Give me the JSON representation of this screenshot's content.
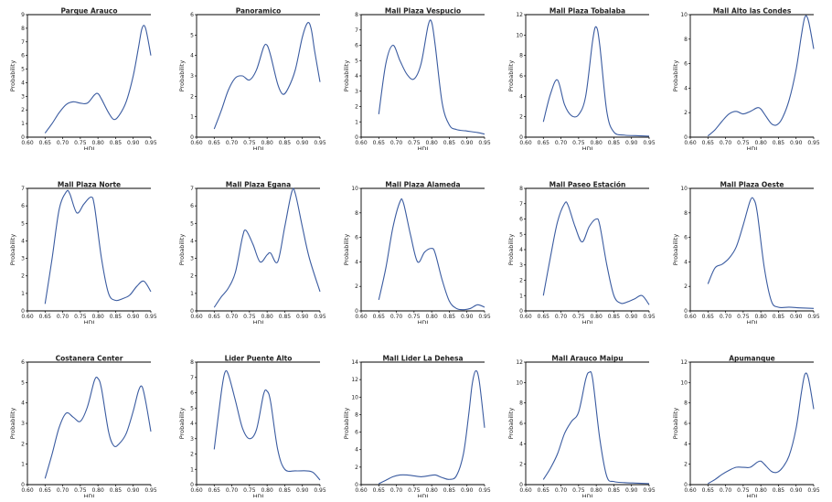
{
  "line_color": "#3a5ba0",
  "chart_data": [
    {
      "type": "line",
      "title": "Parque Arauco",
      "xlabel": "HDI",
      "ylabel": "Probability",
      "xlim": [
        0.6,
        0.95
      ],
      "ylim": [
        0,
        9
      ],
      "xticks": [
        0.6,
        0.65,
        0.7,
        0.75,
        0.8,
        0.85,
        0.9,
        0.95
      ],
      "yticks": [
        0,
        1,
        2,
        3,
        4,
        5,
        6,
        7,
        8,
        9
      ],
      "x": [
        0.65,
        0.67,
        0.69,
        0.71,
        0.73,
        0.75,
        0.77,
        0.79,
        0.8,
        0.81,
        0.83,
        0.845,
        0.86,
        0.88,
        0.9,
        0.915,
        0.925,
        0.935,
        0.95
      ],
      "y": [
        0.3,
        1.0,
        1.8,
        2.4,
        2.6,
        2.5,
        2.5,
        3.1,
        3.2,
        2.8,
        1.8,
        1.3,
        1.6,
        2.6,
        4.5,
        6.6,
        8.0,
        8.0,
        6.0
      ]
    },
    {
      "type": "line",
      "title": "Panoramico",
      "xlabel": "HDI",
      "ylabel": "Probability",
      "xlim": [
        0.6,
        0.95
      ],
      "ylim": [
        0,
        6
      ],
      "xticks": [
        0.6,
        0.65,
        0.7,
        0.75,
        0.8,
        0.85,
        0.9,
        0.95
      ],
      "yticks": [
        0,
        1,
        2,
        3,
        4,
        5,
        6
      ],
      "x": [
        0.65,
        0.67,
        0.69,
        0.71,
        0.73,
        0.75,
        0.77,
        0.79,
        0.8,
        0.81,
        0.83,
        0.845,
        0.86,
        0.88,
        0.9,
        0.915,
        0.925,
        0.935,
        0.95
      ],
      "y": [
        0.4,
        1.3,
        2.3,
        2.9,
        3.0,
        2.8,
        3.3,
        4.4,
        4.5,
        4.0,
        2.6,
        2.1,
        2.4,
        3.3,
        4.9,
        5.6,
        5.3,
        4.2,
        2.7
      ]
    },
    {
      "type": "line",
      "title": "Mall Plaza Vespucio",
      "xlabel": "HDI",
      "ylabel": "Probability",
      "xlim": [
        0.6,
        0.95
      ],
      "ylim": [
        0,
        8
      ],
      "xticks": [
        0.6,
        0.65,
        0.7,
        0.75,
        0.8,
        0.85,
        0.9,
        0.95
      ],
      "yticks": [
        0,
        1,
        2,
        3,
        4,
        5,
        6,
        7,
        8
      ],
      "x": [
        0.65,
        0.67,
        0.69,
        0.71,
        0.73,
        0.75,
        0.77,
        0.79,
        0.8,
        0.81,
        0.83,
        0.85,
        0.87,
        0.9,
        0.93,
        0.95
      ],
      "y": [
        1.5,
        4.8,
        6.0,
        5.0,
        4.1,
        3.8,
        4.8,
        7.3,
        7.5,
        6.0,
        2.2,
        0.8,
        0.5,
        0.4,
        0.3,
        0.2
      ]
    },
    {
      "type": "line",
      "title": "Mall Plaza Tobalaba",
      "xlabel": "HDI",
      "ylabel": "Probability",
      "xlim": [
        0.6,
        0.95
      ],
      "ylim": [
        0,
        12
      ],
      "xticks": [
        0.6,
        0.65,
        0.7,
        0.75,
        0.8,
        0.85,
        0.9,
        0.95
      ],
      "yticks": [
        0,
        2,
        4,
        6,
        8,
        10,
        12
      ],
      "x": [
        0.65,
        0.67,
        0.69,
        0.71,
        0.73,
        0.75,
        0.77,
        0.79,
        0.8,
        0.81,
        0.83,
        0.85,
        0.88,
        0.91,
        0.95
      ],
      "y": [
        1.5,
        4.2,
        5.6,
        3.2,
        2.1,
        2.2,
        4.0,
        9.5,
        10.8,
        9.0,
        2.5,
        0.5,
        0.2,
        0.15,
        0.1
      ]
    },
    {
      "type": "line",
      "title": "Mall Alto las Condes",
      "xlabel": "HDI",
      "ylabel": "Probability",
      "xlim": [
        0.6,
        0.95
      ],
      "ylim": [
        0,
        10
      ],
      "xticks": [
        0.6,
        0.65,
        0.7,
        0.75,
        0.8,
        0.85,
        0.9,
        0.95
      ],
      "yticks": [
        0,
        2,
        4,
        6,
        8,
        10
      ],
      "x": [
        0.65,
        0.67,
        0.69,
        0.71,
        0.73,
        0.75,
        0.77,
        0.79,
        0.8,
        0.81,
        0.83,
        0.845,
        0.86,
        0.88,
        0.9,
        0.915,
        0.925,
        0.935,
        0.95
      ],
      "y": [
        0.1,
        0.6,
        1.3,
        1.9,
        2.1,
        1.9,
        2.1,
        2.4,
        2.3,
        1.9,
        1.1,
        1.0,
        1.5,
        3.0,
        5.5,
        8.3,
        9.8,
        9.5,
        7.2
      ]
    },
    {
      "type": "line",
      "title": "Mall Plaza Norte",
      "xlabel": "HDI",
      "ylabel": "Probability",
      "xlim": [
        0.6,
        0.95
      ],
      "ylim": [
        0,
        7
      ],
      "xticks": [
        0.6,
        0.65,
        0.7,
        0.75,
        0.8,
        0.85,
        0.9,
        0.95
      ],
      "yticks": [
        0,
        1,
        2,
        3,
        4,
        5,
        6,
        7
      ],
      "x": [
        0.65,
        0.67,
        0.69,
        0.71,
        0.72,
        0.74,
        0.76,
        0.78,
        0.79,
        0.81,
        0.83,
        0.85,
        0.87,
        0.89,
        0.91,
        0.93,
        0.95
      ],
      "y": [
        0.4,
        3.0,
        5.8,
        6.8,
        6.7,
        5.6,
        6.1,
        6.5,
        6.0,
        3.0,
        1.0,
        0.6,
        0.7,
        0.9,
        1.4,
        1.7,
        1.1
      ]
    },
    {
      "type": "line",
      "title": "Mall Plaza Egana",
      "xlabel": "HDI",
      "ylabel": "Probability",
      "xlim": [
        0.6,
        0.95
      ],
      "ylim": [
        0,
        7
      ],
      "xticks": [
        0.6,
        0.65,
        0.7,
        0.75,
        0.8,
        0.85,
        0.9,
        0.95
      ],
      "yticks": [
        0,
        1,
        2,
        3,
        4,
        5,
        6,
        7
      ],
      "x": [
        0.65,
        0.67,
        0.69,
        0.71,
        0.73,
        0.74,
        0.76,
        0.78,
        0.8,
        0.81,
        0.83,
        0.85,
        0.87,
        0.88,
        0.9,
        0.92,
        0.95
      ],
      "y": [
        0.2,
        0.8,
        1.3,
        2.2,
        4.2,
        4.6,
        3.8,
        2.8,
        3.2,
        3.3,
        2.8,
        4.8,
        6.8,
        6.7,
        4.8,
        3.0,
        1.1
      ]
    },
    {
      "type": "line",
      "title": "Mall Plaza Alameda",
      "xlabel": "HDI",
      "ylabel": "Probability",
      "xlim": [
        0.6,
        0.95
      ],
      "ylim": [
        0,
        10
      ],
      "xticks": [
        0.6,
        0.65,
        0.7,
        0.75,
        0.8,
        0.85,
        0.9,
        0.95
      ],
      "yticks": [
        0,
        2,
        4,
        6,
        8,
        10
      ],
      "x": [
        0.65,
        0.67,
        0.69,
        0.71,
        0.72,
        0.74,
        0.76,
        0.78,
        0.8,
        0.81,
        0.83,
        0.85,
        0.87,
        0.89,
        0.91,
        0.93,
        0.95
      ],
      "y": [
        0.9,
        3.5,
        6.8,
        8.9,
        8.8,
        6.2,
        4.0,
        4.8,
        5.1,
        4.7,
        2.5,
        0.8,
        0.2,
        0.1,
        0.2,
        0.5,
        0.3
      ]
    },
    {
      "type": "line",
      "title": "Mall Paseo Estación",
      "xlabel": "HDI",
      "ylabel": "Probability",
      "xlim": [
        0.6,
        0.95
      ],
      "ylim": [
        0,
        8
      ],
      "xticks": [
        0.6,
        0.65,
        0.7,
        0.75,
        0.8,
        0.85,
        0.9,
        0.95
      ],
      "yticks": [
        0,
        1,
        2,
        3,
        4,
        5,
        6,
        7,
        8
      ],
      "x": [
        0.65,
        0.67,
        0.69,
        0.71,
        0.72,
        0.74,
        0.76,
        0.78,
        0.8,
        0.81,
        0.83,
        0.85,
        0.87,
        0.89,
        0.91,
        0.93,
        0.95
      ],
      "y": [
        1.0,
        3.5,
        5.8,
        7.0,
        6.9,
        5.5,
        4.5,
        5.5,
        6.0,
        5.6,
        3.0,
        1.0,
        0.5,
        0.6,
        0.8,
        1.0,
        0.4
      ]
    },
    {
      "type": "line",
      "title": "Mall Plaza Oeste",
      "xlabel": "HDI",
      "ylabel": "Probability",
      "xlim": [
        0.6,
        0.95
      ],
      "ylim": [
        0,
        10
      ],
      "xticks": [
        0.6,
        0.65,
        0.7,
        0.75,
        0.8,
        0.85,
        0.9,
        0.95
      ],
      "yticks": [
        0,
        2,
        4,
        6,
        8,
        10
      ],
      "x": [
        0.65,
        0.67,
        0.69,
        0.71,
        0.73,
        0.75,
        0.77,
        0.78,
        0.79,
        0.81,
        0.83,
        0.85,
        0.88,
        0.91,
        0.95
      ],
      "y": [
        2.2,
        3.5,
        3.8,
        4.3,
        5.2,
        7.0,
        9.0,
        9.1,
        8.0,
        3.5,
        0.8,
        0.3,
        0.3,
        0.25,
        0.2
      ]
    },
    {
      "type": "line",
      "title": "Costanera Center",
      "xlabel": "HDI",
      "ylabel": "Probability",
      "xlim": [
        0.6,
        0.95
      ],
      "ylim": [
        0,
        6
      ],
      "xticks": [
        0.6,
        0.65,
        0.7,
        0.75,
        0.8,
        0.85,
        0.9,
        0.95
      ],
      "yticks": [
        0,
        1,
        2,
        3,
        4,
        5,
        6
      ],
      "x": [
        0.65,
        0.67,
        0.69,
        0.71,
        0.73,
        0.75,
        0.77,
        0.79,
        0.8,
        0.81,
        0.83,
        0.845,
        0.86,
        0.88,
        0.9,
        0.915,
        0.925,
        0.935,
        0.95
      ],
      "y": [
        0.3,
        1.5,
        2.8,
        3.5,
        3.3,
        3.1,
        3.8,
        5.1,
        5.2,
        4.7,
        2.6,
        1.9,
        2.0,
        2.5,
        3.6,
        4.6,
        4.8,
        4.1,
        2.6
      ]
    },
    {
      "type": "line",
      "title": "Lider Puente Alto",
      "xlabel": "HDI",
      "ylabel": "Probability",
      "xlim": [
        0.6,
        0.95
      ],
      "ylim": [
        0,
        8
      ],
      "xticks": [
        0.6,
        0.65,
        0.7,
        0.75,
        0.8,
        0.85,
        0.9,
        0.95
      ],
      "yticks": [
        0,
        1,
        2,
        3,
        4,
        5,
        6,
        7,
        8
      ],
      "x": [
        0.65,
        0.67,
        0.68,
        0.69,
        0.71,
        0.73,
        0.75,
        0.77,
        0.79,
        0.8,
        0.81,
        0.83,
        0.85,
        0.88,
        0.91,
        0.93,
        0.95
      ],
      "y": [
        2.3,
        6.0,
        7.3,
        7.2,
        5.5,
        3.7,
        3.0,
        3.6,
        5.9,
        6.1,
        5.4,
        2.3,
        1.0,
        0.9,
        0.9,
        0.8,
        0.3
      ]
    },
    {
      "type": "line",
      "title": "Mall Lider La Dehesa",
      "xlabel": "HDI",
      "ylabel": "Probability",
      "xlim": [
        0.6,
        0.95
      ],
      "ylim": [
        0,
        14
      ],
      "xticks": [
        0.6,
        0.65,
        0.7,
        0.75,
        0.8,
        0.85,
        0.9,
        0.95
      ],
      "yticks": [
        0,
        2,
        4,
        6,
        8,
        10,
        12,
        14
      ],
      "x": [
        0.65,
        0.67,
        0.69,
        0.71,
        0.73,
        0.75,
        0.77,
        0.79,
        0.81,
        0.83,
        0.85,
        0.87,
        0.89,
        0.905,
        0.915,
        0.925,
        0.935,
        0.95
      ],
      "y": [
        0.1,
        0.5,
        0.9,
        1.1,
        1.1,
        1.0,
        0.9,
        1.0,
        1.1,
        0.8,
        0.6,
        1.0,
        3.5,
        8.0,
        11.5,
        13.0,
        11.8,
        6.5
      ]
    },
    {
      "type": "line",
      "title": "Mall Arauco Maipu",
      "xlabel": "HDI",
      "ylabel": "Probability",
      "xlim": [
        0.6,
        0.95
      ],
      "ylim": [
        0,
        12
      ],
      "xticks": [
        0.6,
        0.65,
        0.7,
        0.75,
        0.8,
        0.85,
        0.9,
        0.95
      ],
      "yticks": [
        0,
        2,
        4,
        6,
        8,
        10,
        12
      ],
      "x": [
        0.65,
        0.67,
        0.69,
        0.71,
        0.73,
        0.75,
        0.77,
        0.78,
        0.79,
        0.81,
        0.83,
        0.85,
        0.88,
        0.91,
        0.95
      ],
      "y": [
        0.5,
        1.6,
        3.0,
        5.0,
        6.2,
        7.1,
        10.3,
        11.0,
        10.3,
        4.5,
        0.8,
        0.3,
        0.2,
        0.15,
        0.1
      ]
    },
    {
      "type": "line",
      "title": "Apumanque",
      "xlabel": "HDI",
      "ylabel": "Probability",
      "xlim": [
        0.6,
        0.95
      ],
      "ylim": [
        0,
        12
      ],
      "xticks": [
        0.6,
        0.65,
        0.7,
        0.75,
        0.8,
        0.85,
        0.9,
        0.95
      ],
      "yticks": [
        0,
        2,
        4,
        6,
        8,
        10,
        12
      ],
      "x": [
        0.65,
        0.67,
        0.69,
        0.71,
        0.73,
        0.75,
        0.77,
        0.79,
        0.8,
        0.81,
        0.83,
        0.845,
        0.86,
        0.88,
        0.9,
        0.915,
        0.925,
        0.935,
        0.95
      ],
      "y": [
        0.1,
        0.5,
        1.0,
        1.4,
        1.7,
        1.7,
        1.7,
        2.2,
        2.3,
        2.0,
        1.3,
        1.2,
        1.6,
        2.8,
        5.5,
        9.0,
        10.8,
        10.4,
        7.4
      ]
    }
  ]
}
